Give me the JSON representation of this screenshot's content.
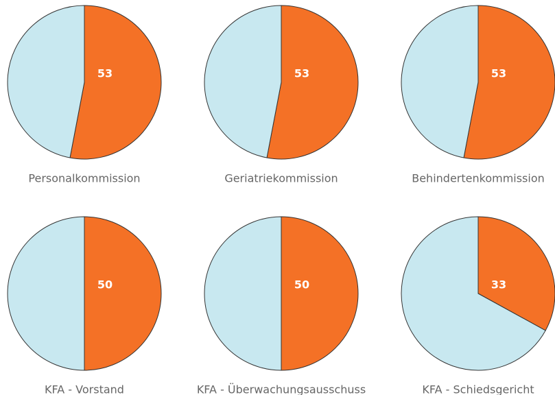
{
  "chart_data": [
    {
      "type": "pie",
      "label": "Personalkommission",
      "values": [
        53,
        47
      ],
      "colors": [
        "#f47126",
        "#c8e8f0"
      ]
    },
    {
      "type": "pie",
      "label": "Geriatriekommission",
      "values": [
        53,
        47
      ],
      "colors": [
        "#f47126",
        "#c8e8f0"
      ]
    },
    {
      "type": "pie",
      "label": "Behindertenkommission",
      "values": [
        53,
        47
      ],
      "colors": [
        "#f47126",
        "#c8e8f0"
      ]
    },
    {
      "type": "pie",
      "label": "KFA - Vorstand",
      "values": [
        50,
        50
      ],
      "colors": [
        "#f47126",
        "#c8e8f0"
      ]
    },
    {
      "type": "pie",
      "label": "KFA - Überwachungsausschuss",
      "values": [
        50,
        50
      ],
      "colors": [
        "#f47126",
        "#c8e8f0"
      ]
    },
    {
      "type": "pie",
      "label": "KFA - Schiedsgericht",
      "values": [
        33,
        67
      ],
      "colors": [
        "#f47126",
        "#c8e8f0"
      ]
    }
  ]
}
